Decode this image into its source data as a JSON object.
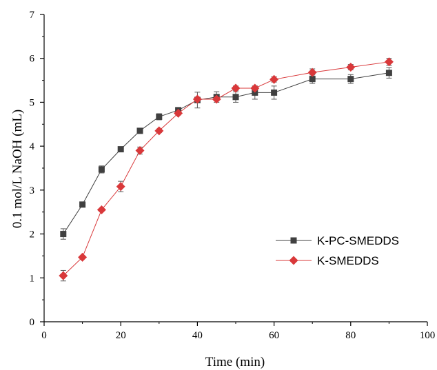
{
  "chart_data": {
    "type": "line",
    "title": "",
    "xlabel": "Time (min)",
    "ylabel": "0.1 mol/L NaOH (mL)",
    "xlim": [
      0,
      100
    ],
    "ylim": [
      0,
      7
    ],
    "xticks": [
      0,
      20,
      40,
      60,
      80,
      100
    ],
    "yticks": [
      0,
      1,
      2,
      3,
      4,
      5,
      6,
      7
    ],
    "x_tick_labels": [
      "0",
      "20",
      "40",
      "60",
      "80",
      "100"
    ],
    "y_tick_labels": [
      "0",
      "1",
      "2",
      "3",
      "4",
      "5",
      "6",
      "7"
    ],
    "grid": false,
    "legend_position": "center-right",
    "series": [
      {
        "name": "K-PC-SMEDDS",
        "marker": "square",
        "color": "#404040",
        "x": [
          5,
          10,
          15,
          20,
          25,
          30,
          35,
          40,
          45,
          50,
          55,
          60,
          70,
          80,
          90
        ],
        "y": [
          2.0,
          2.67,
          3.47,
          3.93,
          4.35,
          4.67,
          4.82,
          5.05,
          5.12,
          5.12,
          5.22,
          5.22,
          5.53,
          5.53,
          5.67
        ],
        "err": [
          0.12,
          0.03,
          0.08,
          0.04,
          0.06,
          0.07,
          0.04,
          0.18,
          0.12,
          0.12,
          0.15,
          0.15,
          0.1,
          0.1,
          0.12
        ]
      },
      {
        "name": "K-SMEDDS",
        "marker": "diamond",
        "color": "#d9383a",
        "x": [
          5,
          10,
          15,
          20,
          25,
          30,
          35,
          40,
          45,
          50,
          55,
          60,
          70,
          80,
          90
        ],
        "y": [
          1.05,
          1.47,
          2.55,
          3.08,
          3.9,
          4.35,
          4.75,
          5.07,
          5.07,
          5.32,
          5.32,
          5.52,
          5.68,
          5.8,
          5.92
        ],
        "err": [
          0.12,
          0.03,
          0.03,
          0.12,
          0.08,
          0.04,
          0.04,
          0.05,
          0.03,
          0.05,
          0.05,
          0.06,
          0.08,
          0.06,
          0.08
        ]
      }
    ]
  }
}
